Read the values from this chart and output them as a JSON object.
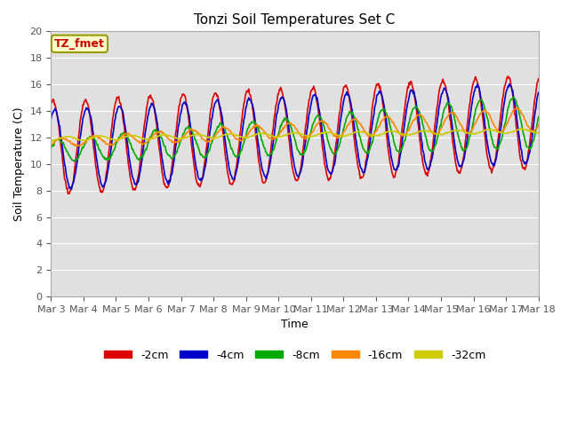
{
  "title": "Tonzi Soil Temperatures Set C",
  "xlabel": "Time",
  "ylabel": "Soil Temperature (C)",
  "ylim": [
    0,
    20
  ],
  "yticks": [
    0,
    2,
    4,
    6,
    8,
    10,
    12,
    14,
    16,
    18,
    20
  ],
  "x_labels": [
    "Mar 3",
    "Mar 4",
    "Mar 5",
    "Mar 6",
    "Mar 7",
    "Mar 8",
    "Mar 9",
    "Mar 10",
    "Mar 11",
    "Mar 12",
    "Mar 13",
    "Mar 14",
    "Mar 15",
    "Mar 16",
    "Mar 17",
    "Mar 18"
  ],
  "plot_bg": "#e0e0e0",
  "fig_bg": "#ffffff",
  "annotation_text": "TZ_fmet",
  "annotation_color": "#cc0000",
  "annotation_bg": "#ffffcc",
  "annotation_edge": "#999900",
  "line_colors": [
    "#dd0000",
    "#0000cc",
    "#00aa00",
    "#ff8800",
    "#cccc00"
  ],
  "line_labels": [
    "-2cm",
    "-4cm",
    "-8cm",
    "-16cm",
    "-32cm"
  ],
  "line_width": 1.2,
  "grid_color": "#ffffff",
  "tick_color": "#555555",
  "title_fontsize": 11,
  "axis_label_fontsize": 9,
  "tick_fontsize": 8,
  "legend_fontsize": 9
}
